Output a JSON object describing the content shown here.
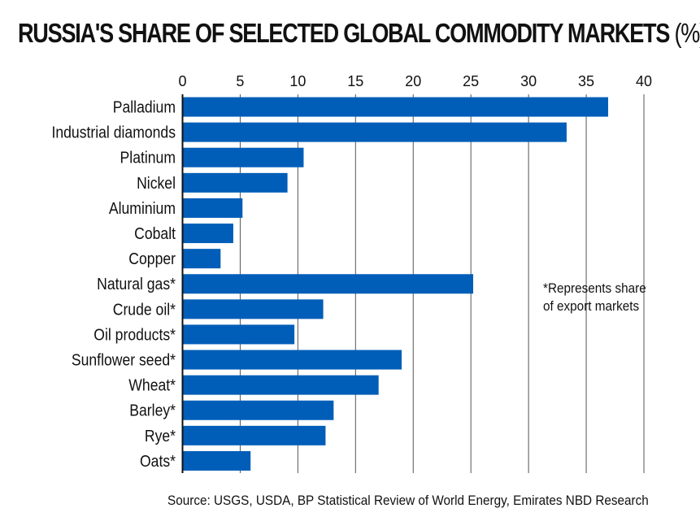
{
  "chart_data": {
    "type": "bar",
    "orientation": "horizontal",
    "title": "RUSSIA'S SHARE OF SELECTED GLOBAL COMMODITY MARKETS",
    "title_unit": "(%)",
    "categories": [
      "Palladium",
      "Industrial diamonds",
      "Platinum",
      "Nickel",
      "Aluminium",
      "Cobalt",
      "Copper",
      "Natural gas*",
      "Crude oil*",
      "Oil products*",
      "Sunflower seed*",
      "Wheat*",
      "Barley*",
      "Rye*",
      "Oats*"
    ],
    "values": [
      36.9,
      33.3,
      10.5,
      9.1,
      5.2,
      4.4,
      3.3,
      25.2,
      12.2,
      9.7,
      19.0,
      17.0,
      13.1,
      12.4,
      5.9
    ],
    "xlim": [
      0,
      40
    ],
    "xticks": [
      0,
      5,
      10,
      15,
      20,
      25,
      30,
      35,
      40
    ],
    "xtick_position": "top",
    "grid": true,
    "bar_color": "#005EB8",
    "annotation": [
      "*Represents share",
      "of export markets"
    ],
    "source": "Source: USGS, USDA, BP Statistical Review of World Energy, Emirates NBD Research"
  }
}
